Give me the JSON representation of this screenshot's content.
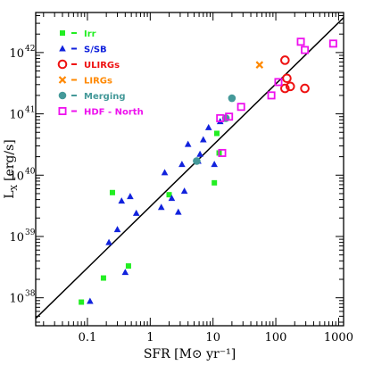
{
  "chart_data": {
    "type": "scatter",
    "title": "",
    "xlabel": "SFR [M⊙ yr⁻¹]",
    "ylabel": "L",
    "ylabel_sub": "X",
    "ylabel_unit": "[erg/s]",
    "x_scale": "log",
    "y_scale": "log",
    "xlim": [
      0.015,
      1200
    ],
    "ylim": [
      3.5e+37,
      4.5e+42
    ],
    "x_ticks": [
      {
        "value": 0.1,
        "label": "0.1"
      },
      {
        "value": 1,
        "label": "1"
      },
      {
        "value": 10,
        "label": "10"
      },
      {
        "value": 100,
        "label": "100"
      },
      {
        "value": 1000,
        "label": "1000"
      }
    ],
    "y_ticks": [
      {
        "value": 1e+38,
        "label": "10",
        "exp": "38"
      },
      {
        "value": 1e+39,
        "label": "10",
        "exp": "39"
      },
      {
        "value": 1e+40,
        "label": "10",
        "exp": "40"
      },
      {
        "value": 1e+41,
        "label": "10",
        "exp": "41"
      },
      {
        "value": 1e+42,
        "label": "10",
        "exp": "42"
      }
    ],
    "grid": false,
    "legend_position": "top-left",
    "fit_line": {
      "type": "line",
      "points": [
        [
          0.015,
          4.6e+37
        ],
        [
          1200,
          3.7e+42
        ]
      ],
      "color": "#000000"
    },
    "series": [
      {
        "name": "Irr",
        "marker": "square",
        "color": "#22ee22",
        "points": [
          [
            0.08,
            8.5e+37
          ],
          [
            0.18,
            2.1e+38
          ],
          [
            0.25,
            5.2e+39
          ],
          [
            0.45,
            3.3e+38
          ],
          [
            2.0,
            4.8e+39
          ],
          [
            10.5,
            7.5e+39
          ],
          [
            11.5,
            4.8e+40
          ],
          [
            12.5,
            2.3e+40
          ]
        ]
      },
      {
        "name": "S/SB",
        "marker": "triangle",
        "color": "#1122dd",
        "points": [
          [
            0.11,
            8.8e+37
          ],
          [
            0.22,
            8e+38
          ],
          [
            0.3,
            1.3e+39
          ],
          [
            0.35,
            3.8e+39
          ],
          [
            0.4,
            2.6e+38
          ],
          [
            0.48,
            4.5e+39
          ],
          [
            0.6,
            2.4e+39
          ],
          [
            1.5,
            3e+39
          ],
          [
            1.7,
            1.1e+40
          ],
          [
            2.2,
            4.2e+39
          ],
          [
            2.8,
            2.5e+39
          ],
          [
            3.2,
            1.5e+40
          ],
          [
            3.5,
            5.5e+39
          ],
          [
            4.0,
            3.2e+40
          ],
          [
            5.8,
            1.7e+40
          ],
          [
            6.2,
            2.2e+40
          ],
          [
            7.0,
            3.8e+40
          ],
          [
            8.5,
            6e+40
          ],
          [
            10.5,
            1.5e+40
          ],
          [
            13.0,
            7.5e+40
          ]
        ]
      },
      {
        "name": "ULIRGs",
        "marker": "circle",
        "color": "#ee1111",
        "points": [
          [
            140,
            7.5e+41
          ],
          [
            140,
            2.6e+41
          ],
          [
            150,
            3.8e+41
          ],
          [
            170,
            2.8e+41
          ],
          [
            290,
            2.6e+41
          ]
        ]
      },
      {
        "name": "LIRGs",
        "marker": "cross",
        "color": "#ff8800",
        "points": [
          [
            55,
            6.3e+41
          ]
        ]
      },
      {
        "name": "Merging",
        "marker": "dot",
        "color": "#449999",
        "points": [
          [
            5.5,
            1.7e+40
          ],
          [
            16,
            8.5e+40
          ],
          [
            20,
            1.8e+41
          ]
        ]
      },
      {
        "name": "HDF - North",
        "marker": "open-square",
        "color": "#ee11ee",
        "points": [
          [
            13,
            8.5e+40
          ],
          [
            14,
            2.3e+40
          ],
          [
            18,
            9e+40
          ],
          [
            28,
            1.3e+41
          ],
          [
            85,
            2e+41
          ],
          [
            110,
            3.3e+41
          ],
          [
            250,
            1.5e+42
          ],
          [
            290,
            1.1e+42
          ],
          [
            820,
            1.4e+42
          ]
        ]
      }
    ]
  }
}
